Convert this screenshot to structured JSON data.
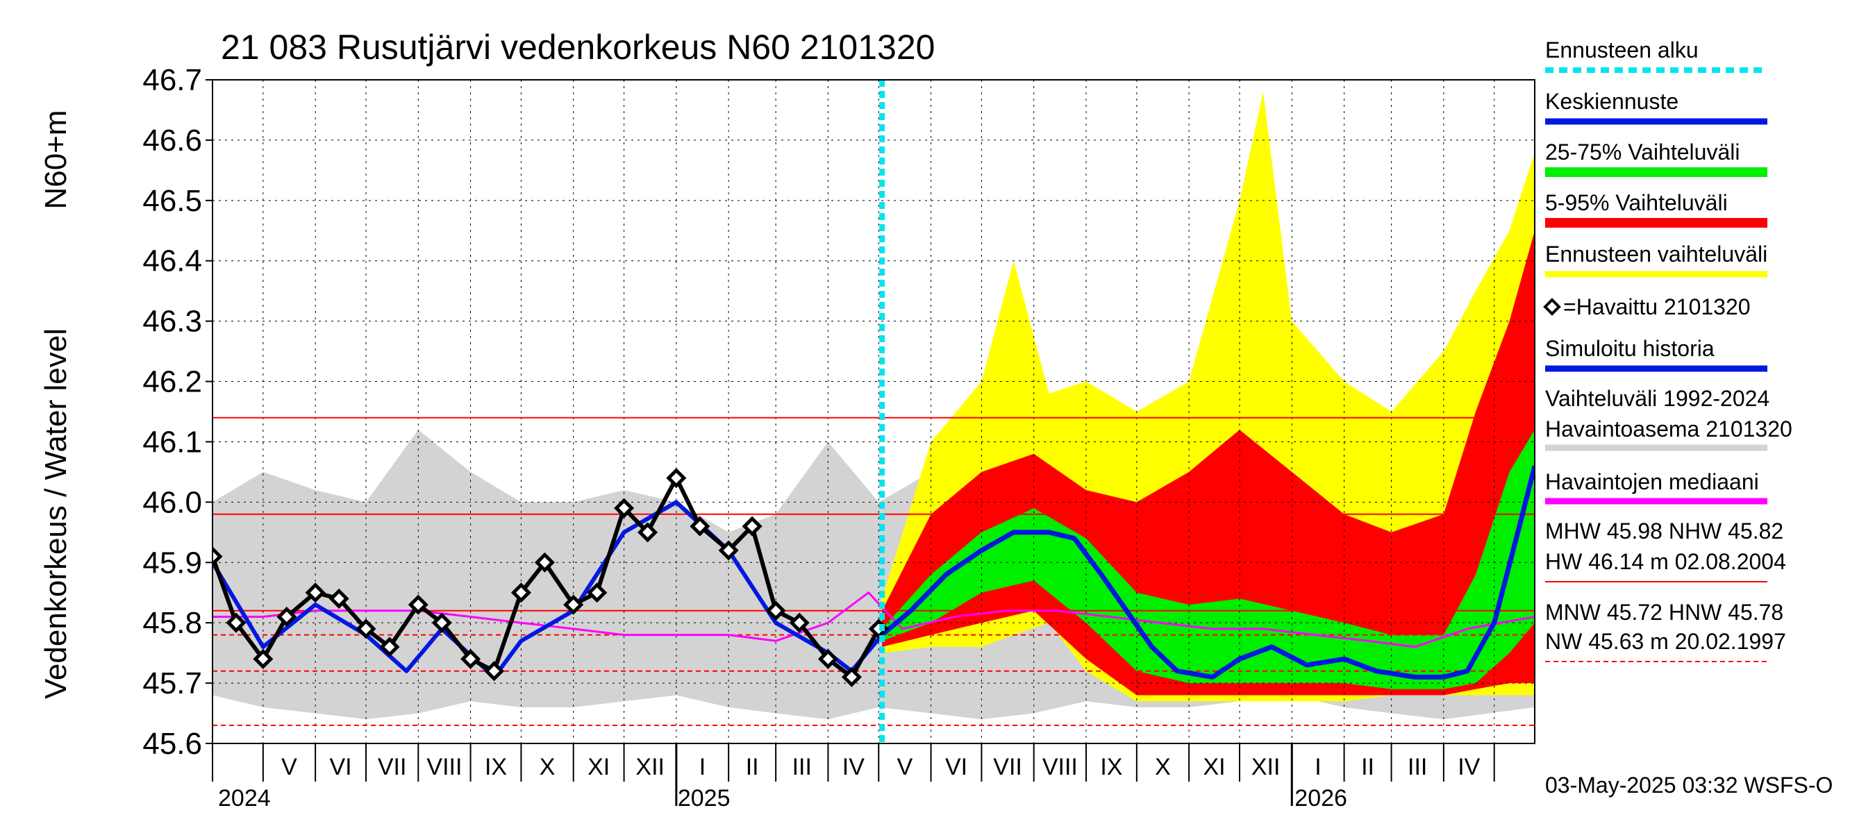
{
  "chart_data": {
    "type": "line",
    "title": "21 083 Rusutjärvi vedenkorkeus N60 2101320",
    "ylabel_line1": "Vedenkorkeus / Water level",
    "ylabel_line2": "N60+m",
    "ylim": [
      45.6,
      46.7
    ],
    "yticks": [
      "45.6",
      "45.7",
      "45.8",
      "45.9",
      "46.0",
      "46.1",
      "46.2",
      "46.3",
      "46.4",
      "46.5",
      "46.6",
      "46.7"
    ],
    "xlim": [
      "2024-04-01",
      "2026-05-25"
    ],
    "grid": true,
    "month_labels": [
      "V",
      "VI",
      "VII",
      "VIII",
      "IX",
      "X",
      "XI",
      "XII",
      "I",
      "II",
      "III",
      "IV",
      "V",
      "VI",
      "VII",
      "VIII",
      "IX",
      "X",
      "XI",
      "XII",
      "I",
      "II",
      "III",
      "IV"
    ],
    "year_labels": [
      "2024",
      "2025",
      "2026"
    ],
    "forecast_start": "2025-05-03",
    "reference_lines": [
      {
        "name": "HW",
        "value": 46.14,
        "style": "solid"
      },
      {
        "name": "MHW",
        "value": 45.98,
        "style": "solid"
      },
      {
        "name": "NHW",
        "value": 45.82,
        "style": "solid"
      },
      {
        "name": "HNW",
        "value": 45.78,
        "style": "dashed"
      },
      {
        "name": "MNW",
        "value": 45.72,
        "style": "dashed"
      },
      {
        "name": "NW",
        "value": 45.63,
        "style": "dashed"
      }
    ],
    "legend": [
      {
        "label": "Ennusteen alku",
        "color": "#00e5ee",
        "style": "dotted"
      },
      {
        "label": "Keskiennuste",
        "color": "#0018e0",
        "style": "line"
      },
      {
        "label": "25-75% Vaihteluväli",
        "color": "#00ee00",
        "style": "line"
      },
      {
        "label": "5-95% Vaihteluväli",
        "color": "#ff0000",
        "style": "line"
      },
      {
        "label": "Ennusteen vaihteluväli",
        "color": "#ffff00",
        "style": "line"
      },
      {
        "label": "=Havaittu 2101320",
        "color": "#000000",
        "style": "diamond"
      },
      {
        "label": "Simuloitu historia",
        "color": "#0018e0",
        "style": "line"
      },
      {
        "label": "Vaihteluväli 1992-2024",
        "label2": " Havaintoasema 2101320",
        "color": "#d3d3d3",
        "style": "line"
      },
      {
        "label": "Havaintojen mediaani",
        "color": "#ff00ff",
        "style": "line"
      }
    ],
    "stats": {
      "line1": "MHW  45.98 NHW  45.82",
      "line2": "HW  46.14 m 02.08.2004",
      "line3": "MNW  45.72 HNW  45.78",
      "line4": "NW  45.63 m 20.02.1997"
    },
    "footer": "03-May-2025 03:32 WSFS-O",
    "observed": {
      "x": [
        "2024-04-01",
        "2024-04-15",
        "2024-05-01",
        "2024-05-15",
        "2024-06-01",
        "2024-06-15",
        "2024-07-01",
        "2024-07-15",
        "2024-08-01",
        "2024-08-15",
        "2024-09-01",
        "2024-09-15",
        "2024-10-01",
        "2024-10-15",
        "2024-11-01",
        "2024-11-15",
        "2024-12-01",
        "2024-12-15",
        "2025-01-01",
        "2025-01-15",
        "2025-02-01",
        "2025-02-15",
        "2025-03-01",
        "2025-03-15",
        "2025-04-01",
        "2025-04-15",
        "2025-05-01"
      ],
      "y": [
        45.91,
        45.8,
        45.74,
        45.81,
        45.85,
        45.84,
        45.79,
        45.76,
        45.83,
        45.8,
        45.74,
        45.72,
        45.85,
        45.9,
        45.83,
        45.85,
        45.99,
        45.95,
        46.04,
        45.96,
        45.92,
        45.96,
        45.82,
        45.8,
        45.74,
        45.71,
        45.79
      ]
    },
    "simulated_history": {
      "x": [
        "2024-04-01",
        "2024-05-01",
        "2024-06-01",
        "2024-07-01",
        "2024-07-25",
        "2024-08-15",
        "2024-09-15",
        "2024-10-01",
        "2024-11-01",
        "2024-12-01",
        "2025-01-01",
        "2025-02-01",
        "2025-03-01",
        "2025-04-01",
        "2025-04-15",
        "2025-05-03"
      ],
      "y": [
        45.9,
        45.76,
        45.83,
        45.78,
        45.72,
        45.79,
        45.71,
        45.77,
        45.82,
        45.95,
        46.0,
        45.92,
        45.8,
        45.75,
        45.72,
        45.78
      ]
    },
    "history_median": {
      "x": [
        "2024-04-01",
        "2024-05-01",
        "2024-06-01",
        "2024-07-01",
        "2024-08-01",
        "2024-09-01",
        "2024-10-01",
        "2024-11-01",
        "2024-12-01",
        "2025-01-01",
        "2025-02-01",
        "2025-03-01",
        "2025-04-01",
        "2025-04-25",
        "2025-05-15",
        "2025-06-15",
        "2025-07-15",
        "2025-08-15",
        "2025-09-15",
        "2025-10-15",
        "2025-11-15",
        "2025-12-15",
        "2026-01-15",
        "2026-02-15",
        "2026-03-15",
        "2026-04-15",
        "2026-05-25"
      ],
      "y": [
        45.81,
        45.81,
        45.82,
        45.82,
        45.82,
        45.81,
        45.8,
        45.79,
        45.78,
        45.78,
        45.78,
        45.77,
        45.8,
        45.85,
        45.79,
        45.81,
        45.82,
        45.82,
        45.81,
        45.8,
        45.79,
        45.79,
        45.78,
        45.77,
        45.76,
        45.79,
        45.81
      ]
    },
    "history_range": {
      "x": [
        "2024-04-01",
        "2024-05-01",
        "2024-06-01",
        "2024-07-01",
        "2024-08-01",
        "2024-09-01",
        "2024-10-01",
        "2024-11-01",
        "2024-12-01",
        "2025-01-01",
        "2025-02-01",
        "2025-03-01",
        "2025-04-01",
        "2025-05-01",
        "2025-06-01",
        "2025-07-01",
        "2025-08-01",
        "2025-09-01",
        "2025-10-01",
        "2025-11-01",
        "2025-12-01",
        "2026-01-01",
        "2026-02-01",
        "2026-03-01",
        "2026-04-01",
        "2026-05-25"
      ],
      "low": [
        45.68,
        45.66,
        45.65,
        45.64,
        45.65,
        45.67,
        45.66,
        45.66,
        45.67,
        45.68,
        45.66,
        45.65,
        45.64,
        45.66,
        45.65,
        45.64,
        45.65,
        45.67,
        45.66,
        45.66,
        45.67,
        45.68,
        45.66,
        45.65,
        45.64,
        45.66
      ],
      "high": [
        46.0,
        46.05,
        46.02,
        46.0,
        46.12,
        46.05,
        46.0,
        46.0,
        46.02,
        46.0,
        45.95,
        45.98,
        46.1,
        46.0,
        46.05,
        46.02,
        46.0,
        46.12,
        46.05,
        46.0,
        46.0,
        46.02,
        46.0,
        45.95,
        45.98,
        46.08
      ]
    },
    "forecast_median": {
      "x": [
        "2025-05-03",
        "2025-05-20",
        "2025-06-10",
        "2025-07-01",
        "2025-07-20",
        "2025-08-10",
        "2025-08-25",
        "2025-09-10",
        "2025-09-25",
        "2025-10-10",
        "2025-10-25",
        "2025-11-15",
        "2025-12-01",
        "2025-12-20",
        "2026-01-10",
        "2026-02-01",
        "2026-02-20",
        "2026-03-15",
        "2026-04-01",
        "2026-04-15",
        "2026-05-01",
        "2026-05-15",
        "2026-05-25"
      ],
      "y": [
        45.78,
        45.82,
        45.88,
        45.92,
        45.95,
        45.95,
        45.94,
        45.88,
        45.82,
        45.76,
        45.72,
        45.71,
        45.74,
        45.76,
        45.73,
        45.74,
        45.72,
        45.71,
        45.71,
        45.72,
        45.8,
        45.95,
        46.06
      ]
    },
    "forecast_p25_75": {
      "x": [
        "2025-05-03",
        "2025-06-01",
        "2025-07-01",
        "2025-08-01",
        "2025-09-01",
        "2025-10-01",
        "2025-11-01",
        "2025-12-01",
        "2026-01-01",
        "2026-02-01",
        "2026-03-01",
        "2026-04-01",
        "2026-04-20",
        "2026-05-10",
        "2026-05-25"
      ],
      "low": [
        45.77,
        45.8,
        45.85,
        45.87,
        45.8,
        45.72,
        45.7,
        45.7,
        45.7,
        45.7,
        45.69,
        45.69,
        45.7,
        45.75,
        45.8
      ],
      "high": [
        45.79,
        45.88,
        45.95,
        45.99,
        45.94,
        45.85,
        45.83,
        45.84,
        45.82,
        45.8,
        45.78,
        45.78,
        45.88,
        46.05,
        46.12
      ]
    },
    "forecast_p5_95": {
      "x": [
        "2025-05-03",
        "2025-06-01",
        "2025-07-01",
        "2025-08-01",
        "2025-09-01",
        "2025-10-01",
        "2025-11-01",
        "2025-12-01",
        "2026-01-01",
        "2026-02-01",
        "2026-03-01",
        "2026-04-01",
        "2026-04-20",
        "2026-05-10",
        "2026-05-25"
      ],
      "low": [
        45.76,
        45.78,
        45.8,
        45.82,
        45.74,
        45.68,
        45.68,
        45.68,
        45.68,
        45.68,
        45.68,
        45.68,
        45.69,
        45.7,
        45.7
      ],
      "high": [
        45.82,
        45.98,
        46.05,
        46.08,
        46.02,
        46.0,
        46.05,
        46.12,
        46.05,
        45.98,
        45.95,
        45.98,
        46.15,
        46.3,
        46.45
      ]
    },
    "forecast_range": {
      "x": [
        "2025-05-03",
        "2025-06-01",
        "2025-07-01",
        "2025-07-20",
        "2025-08-10",
        "2025-09-01",
        "2025-10-01",
        "2025-11-01",
        "2025-12-01",
        "2025-12-15",
        "2026-01-01",
        "2026-02-01",
        "2026-03-01",
        "2026-04-01",
        "2026-04-20",
        "2026-05-10",
        "2026-05-25"
      ],
      "low": [
        45.75,
        45.76,
        45.76,
        45.78,
        45.8,
        45.72,
        45.67,
        45.67,
        45.67,
        45.67,
        45.67,
        45.67,
        45.68,
        45.68,
        45.68,
        45.68,
        45.68
      ],
      "high": [
        45.84,
        46.1,
        46.2,
        46.4,
        46.18,
        46.2,
        46.15,
        46.2,
        46.5,
        46.68,
        46.3,
        46.2,
        46.15,
        46.25,
        46.35,
        46.45,
        46.58
      ]
    }
  }
}
